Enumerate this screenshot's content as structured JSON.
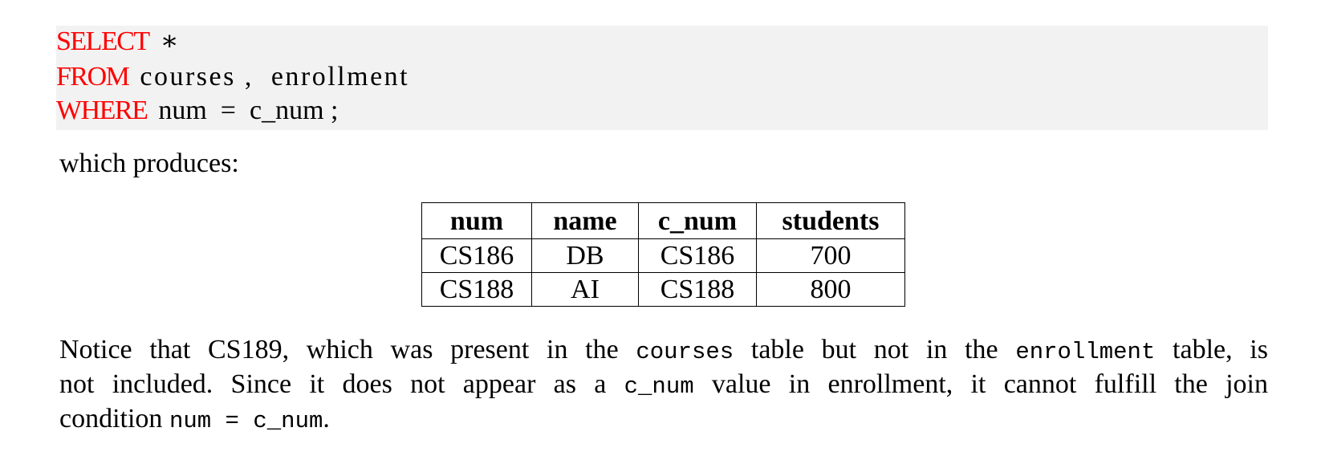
{
  "code": {
    "lines": [
      {
        "keyword": "SELECT",
        "rest": "∗"
      },
      {
        "keyword": "FROM",
        "rest": "courses ,  enrollment"
      },
      {
        "keyword": "WHERE",
        "rest": "num  =  c_num ;"
      }
    ],
    "keyword_color": "#ff0000",
    "background": "#f2f2f2"
  },
  "intro": "which produces:",
  "table": {
    "headers": [
      "num",
      "name",
      "c_num",
      "students"
    ],
    "rows": [
      [
        "CS186",
        "DB",
        "CS186",
        "700"
      ],
      [
        "CS188",
        "AI",
        "CS188",
        "800"
      ]
    ]
  },
  "notice": {
    "l1_a": "Notice that CS189, which was present in the ",
    "l1_code1": "courses",
    "l1_b": " table but not in the ",
    "l1_code2": "enrollment",
    "l1_c": " table, is",
    "l2_a": "not included.  Since it does not appear as a ",
    "l2_code": "c_num",
    "l2_b": " value in enrollment, it cannot fulfill the join",
    "l3_a": "condition ",
    "l3_code": "num = c_num",
    "l3_b": "."
  }
}
